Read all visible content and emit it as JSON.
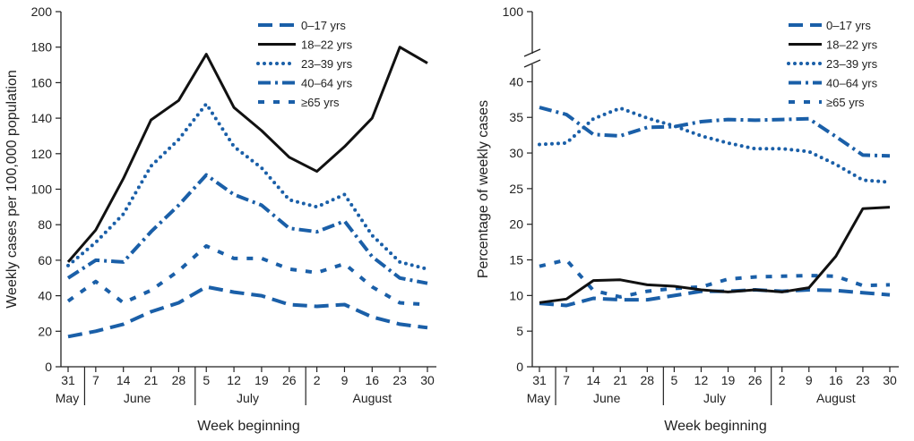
{
  "colors": {
    "blue": "#1a5fa8",
    "black": "#111111",
    "axis": "#222222"
  },
  "chart_data": [
    {
      "type": "line",
      "ylabel": "Weekly cases per 100,000 population",
      "xlabel": "Week beginning",
      "ylim": [
        0,
        200
      ],
      "yticks": [
        0,
        20,
        40,
        60,
        80,
        100,
        120,
        140,
        160,
        180,
        200
      ],
      "x": [
        "31",
        "7",
        "14",
        "21",
        "28",
        "5",
        "12",
        "19",
        "26",
        "2",
        "9",
        "16",
        "23",
        "30"
      ],
      "months": [
        {
          "label": "May",
          "first": 0,
          "last": 0,
          "two_line_first": true
        },
        {
          "label": "June",
          "first": 1,
          "last": 4
        },
        {
          "label": "July",
          "first": 5,
          "last": 8
        },
        {
          "label": "August",
          "first": 9,
          "last": 13
        }
      ],
      "legend_position": "top-right",
      "series": [
        {
          "name": "0–17 yrs",
          "style": "dash",
          "color": "blue",
          "values": [
            17,
            20,
            24,
            31,
            36,
            45,
            42,
            40,
            35,
            34,
            35,
            28,
            24,
            22
          ]
        },
        {
          "name": "18–22 yrs",
          "style": "solid",
          "color": "black",
          "values": [
            59,
            77,
            106,
            139,
            150,
            176,
            146,
            133,
            118,
            110,
            124,
            140,
            180,
            171
          ]
        },
        {
          "name": "23–39 yrs",
          "style": "dot",
          "color": "blue",
          "values": [
            57,
            70,
            86,
            113,
            128,
            148,
            124,
            112,
            94,
            90,
            97,
            74,
            59,
            55
          ]
        },
        {
          "name": "40–64 yrs",
          "style": "dashdot",
          "color": "blue",
          "values": [
            50,
            60,
            59,
            76,
            91,
            108,
            97,
            91,
            78,
            76,
            82,
            62,
            50,
            47
          ]
        },
        {
          "name": "≥65 yrs",
          "style": "sparse",
          "color": "blue",
          "values": [
            37,
            48,
            36,
            43,
            54,
            68,
            61,
            61,
            55,
            53,
            58,
            45,
            36,
            35
          ]
        }
      ]
    },
    {
      "type": "line",
      "ylabel": "Percentage of weekly cases",
      "xlabel": "Week beginning",
      "ylim": [
        0,
        100
      ],
      "axis_break": true,
      "yticks": [
        0,
        5,
        10,
        15,
        20,
        25,
        30,
        35,
        40,
        100
      ],
      "x": [
        "31",
        "7",
        "14",
        "21",
        "28",
        "5",
        "12",
        "19",
        "26",
        "2",
        "9",
        "16",
        "23",
        "30"
      ],
      "months": [
        {
          "label": "May",
          "first": 0,
          "last": 0,
          "two_line_first": true
        },
        {
          "label": "June",
          "first": 1,
          "last": 4
        },
        {
          "label": "July",
          "first": 5,
          "last": 8
        },
        {
          "label": "August",
          "first": 9,
          "last": 13
        }
      ],
      "legend_position": "top-right",
      "series": [
        {
          "name": "0–17 yrs",
          "style": "dash",
          "color": "blue",
          "values": [
            8.9,
            8.6,
            9.6,
            9.4,
            9.4,
            10.0,
            10.6,
            10.6,
            10.8,
            10.6,
            10.8,
            10.7,
            10.4,
            10.1
          ]
        },
        {
          "name": "18–22 yrs",
          "style": "solid",
          "color": "black",
          "values": [
            9.0,
            9.5,
            12.1,
            12.2,
            11.5,
            11.3,
            10.8,
            10.5,
            10.8,
            10.5,
            11.1,
            15.5,
            22.2,
            22.4
          ]
        },
        {
          "name": "23–39 yrs",
          "style": "dot",
          "color": "blue",
          "values": [
            31.2,
            31.4,
            34.8,
            36.3,
            34.9,
            33.8,
            32.4,
            31.4,
            30.6,
            30.6,
            30.2,
            28.4,
            26.2,
            25.9
          ]
        },
        {
          "name": "40–64 yrs",
          "style": "dashdot",
          "color": "blue",
          "values": [
            36.4,
            35.4,
            32.6,
            32.4,
            33.6,
            33.7,
            34.4,
            34.7,
            34.6,
            34.7,
            34.8,
            32.3,
            29.7,
            29.6
          ]
        },
        {
          "name": "≥65 yrs",
          "style": "sparse",
          "color": "blue",
          "values": [
            14.1,
            15.0,
            10.7,
            9.8,
            10.6,
            11.0,
            11.2,
            12.3,
            12.6,
            12.7,
            12.8,
            12.7,
            11.4,
            11.5
          ]
        }
      ]
    }
  ]
}
